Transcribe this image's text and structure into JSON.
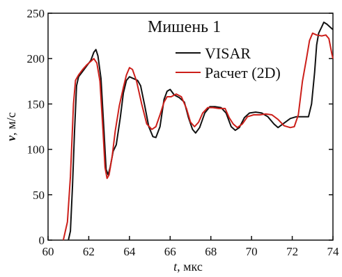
{
  "chart_data": {
    "type": "line",
    "title": "Мишень 1",
    "xlabel_italic": "t",
    "xlabel_rest": ", мкс",
    "ylabel_italic": "v",
    "ylabel_rest": ", м/с",
    "xlim": [
      60,
      74
    ],
    "ylim": [
      0,
      250
    ],
    "xticks": [
      60,
      62,
      64,
      66,
      68,
      70,
      72,
      74
    ],
    "yticks": [
      0,
      50,
      100,
      150,
      200,
      250
    ],
    "legend_position": "top-right",
    "grid": false,
    "series": [
      {
        "name": "VISAR",
        "color": "#111111",
        "points": [
          [
            61.0,
            0
          ],
          [
            61.1,
            10
          ],
          [
            61.2,
            60
          ],
          [
            61.3,
            120
          ],
          [
            61.4,
            170
          ],
          [
            61.5,
            180
          ],
          [
            61.7,
            186
          ],
          [
            61.9,
            192
          ],
          [
            62.1,
            198
          ],
          [
            62.25,
            207
          ],
          [
            62.35,
            210
          ],
          [
            62.45,
            203
          ],
          [
            62.6,
            178
          ],
          [
            62.75,
            120
          ],
          [
            62.85,
            78
          ],
          [
            62.95,
            72
          ],
          [
            63.05,
            80
          ],
          [
            63.2,
            98
          ],
          [
            63.35,
            105
          ],
          [
            63.55,
            135
          ],
          [
            63.7,
            162
          ],
          [
            63.85,
            176
          ],
          [
            64.0,
            180
          ],
          [
            64.2,
            178
          ],
          [
            64.4,
            176
          ],
          [
            64.55,
            170
          ],
          [
            64.75,
            148
          ],
          [
            64.95,
            125
          ],
          [
            65.15,
            114
          ],
          [
            65.3,
            113
          ],
          [
            65.5,
            125
          ],
          [
            65.7,
            155
          ],
          [
            65.85,
            164
          ],
          [
            66.0,
            166
          ],
          [
            66.2,
            160
          ],
          [
            66.45,
            157
          ],
          [
            66.7,
            152
          ],
          [
            66.9,
            135
          ],
          [
            67.1,
            122
          ],
          [
            67.25,
            118
          ],
          [
            67.45,
            124
          ],
          [
            67.7,
            140
          ],
          [
            67.95,
            147
          ],
          [
            68.2,
            147
          ],
          [
            68.5,
            146
          ],
          [
            68.75,
            140
          ],
          [
            69.0,
            125
          ],
          [
            69.2,
            121
          ],
          [
            69.4,
            124
          ],
          [
            69.65,
            135
          ],
          [
            69.9,
            140
          ],
          [
            70.2,
            141
          ],
          [
            70.5,
            140
          ],
          [
            70.8,
            136
          ],
          [
            71.1,
            128
          ],
          [
            71.3,
            124
          ],
          [
            71.6,
            129
          ],
          [
            71.9,
            134
          ],
          [
            72.2,
            136
          ],
          [
            72.5,
            136
          ],
          [
            72.8,
            136
          ],
          [
            72.95,
            150
          ],
          [
            73.1,
            185
          ],
          [
            73.2,
            215
          ],
          [
            73.3,
            228
          ],
          [
            73.45,
            235
          ],
          [
            73.55,
            240
          ],
          [
            73.7,
            238
          ],
          [
            73.85,
            235
          ],
          [
            74.0,
            232
          ]
        ]
      },
      {
        "name": "Расчет (2D)",
        "color": "#cc1f1a",
        "points": [
          [
            60.75,
            0
          ],
          [
            60.95,
            20
          ],
          [
            61.1,
            70
          ],
          [
            61.25,
            150
          ],
          [
            61.35,
            176
          ],
          [
            61.5,
            182
          ],
          [
            61.7,
            188
          ],
          [
            61.9,
            193
          ],
          [
            62.1,
            197
          ],
          [
            62.25,
            200
          ],
          [
            62.4,
            195
          ],
          [
            62.55,
            175
          ],
          [
            62.7,
            120
          ],
          [
            62.8,
            80
          ],
          [
            62.9,
            68
          ],
          [
            63.0,
            72
          ],
          [
            63.15,
            92
          ],
          [
            63.3,
            120
          ],
          [
            63.5,
            148
          ],
          [
            63.7,
            168
          ],
          [
            63.85,
            182
          ],
          [
            64.0,
            190
          ],
          [
            64.15,
            188
          ],
          [
            64.35,
            175
          ],
          [
            64.6,
            150
          ],
          [
            64.85,
            128
          ],
          [
            65.1,
            122
          ],
          [
            65.3,
            125
          ],
          [
            65.5,
            138
          ],
          [
            65.7,
            152
          ],
          [
            65.85,
            158
          ],
          [
            66.05,
            158
          ],
          [
            66.3,
            161
          ],
          [
            66.55,
            158
          ],
          [
            66.8,
            145
          ],
          [
            67.0,
            130
          ],
          [
            67.2,
            125
          ],
          [
            67.4,
            130
          ],
          [
            67.6,
            140
          ],
          [
            67.85,
            146
          ],
          [
            68.1,
            146
          ],
          [
            68.4,
            145
          ],
          [
            68.7,
            145
          ],
          [
            68.9,
            135
          ],
          [
            69.1,
            128
          ],
          [
            69.3,
            124
          ],
          [
            69.55,
            128
          ],
          [
            69.8,
            136
          ],
          [
            70.1,
            138
          ],
          [
            70.4,
            138
          ],
          [
            70.7,
            139
          ],
          [
            71.0,
            138
          ],
          [
            71.3,
            133
          ],
          [
            71.6,
            126
          ],
          [
            71.9,
            124
          ],
          [
            72.1,
            125
          ],
          [
            72.3,
            138
          ],
          [
            72.5,
            175
          ],
          [
            72.7,
            200
          ],
          [
            72.85,
            220
          ],
          [
            73.0,
            228
          ],
          [
            73.2,
            226
          ],
          [
            73.45,
            225
          ],
          [
            73.65,
            226
          ],
          [
            73.8,
            222
          ],
          [
            73.95,
            205
          ],
          [
            74.0,
            200
          ]
        ]
      }
    ]
  }
}
